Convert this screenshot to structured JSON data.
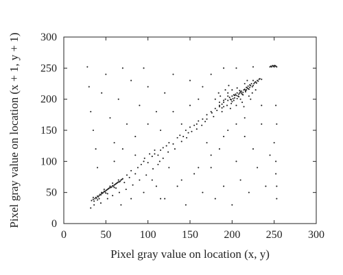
{
  "chart_data": {
    "type": "scatter",
    "xlabel": "Pixel gray value on location (x, y)",
    "ylabel": "Pixel gray value on location (x + 1, y + 1)",
    "xlim": [
      0,
      300
    ],
    "ylim": [
      0,
      300
    ],
    "xticks": [
      "0",
      "50",
      "100",
      "150",
      "200",
      "250",
      "300"
    ],
    "yticks": [
      "0",
      "50",
      "100",
      "150",
      "200",
      "250",
      "300"
    ],
    "grid": false,
    "marker_color": "#222222",
    "series": [
      {
        "points": [
          [
            33,
            37
          ],
          [
            35,
            39
          ],
          [
            37,
            40
          ],
          [
            38,
            42
          ],
          [
            40,
            44
          ],
          [
            42,
            45
          ],
          [
            43,
            47
          ],
          [
            45,
            48
          ],
          [
            47,
            50
          ],
          [
            48,
            52
          ],
          [
            50,
            53
          ],
          [
            52,
            55
          ],
          [
            53,
            56
          ],
          [
            55,
            58
          ],
          [
            57,
            59
          ],
          [
            58,
            61
          ],
          [
            60,
            62
          ],
          [
            62,
            64
          ],
          [
            63,
            65
          ],
          [
            65,
            67
          ],
          [
            67,
            68
          ],
          [
            68,
            70
          ],
          [
            36,
            36
          ],
          [
            39,
            41
          ],
          [
            41,
            43
          ],
          [
            44,
            46
          ],
          [
            46,
            49
          ],
          [
            49,
            51
          ],
          [
            51,
            54
          ],
          [
            54,
            57
          ],
          [
            56,
            58
          ],
          [
            59,
            60
          ],
          [
            61,
            63
          ],
          [
            64,
            66
          ],
          [
            66,
            67
          ],
          [
            69,
            71
          ],
          [
            40,
            38
          ],
          [
            45,
            50
          ],
          [
            50,
            49
          ],
          [
            55,
            60
          ],
          [
            60,
            58
          ],
          [
            65,
            70
          ],
          [
            35,
            42
          ],
          [
            42,
            40
          ],
          [
            48,
            55
          ],
          [
            52,
            48
          ],
          [
            58,
            65
          ],
          [
            62,
            57
          ],
          [
            70,
            72
          ],
          [
            72,
            66
          ],
          [
            75,
            78
          ],
          [
            78,
            74
          ],
          [
            80,
            85
          ],
          [
            85,
            80
          ],
          [
            88,
            90
          ],
          [
            92,
            95
          ],
          [
            95,
            100
          ],
          [
            100,
            98
          ],
          [
            105,
            108
          ],
          [
            108,
            112
          ],
          [
            112,
            110
          ],
          [
            115,
            118
          ],
          [
            118,
            122
          ],
          [
            122,
            125
          ],
          [
            125,
            130
          ],
          [
            130,
            128
          ],
          [
            135,
            138
          ],
          [
            138,
            142
          ],
          [
            142,
            140
          ],
          [
            145,
            150
          ],
          [
            148,
            146
          ],
          [
            150,
            155
          ],
          [
            155,
            158
          ],
          [
            158,
            152
          ],
          [
            160,
            165
          ],
          [
            165,
            168
          ],
          [
            168,
            164
          ],
          [
            170,
            175
          ],
          [
            175,
            180
          ],
          [
            178,
            172
          ],
          [
            180,
            185
          ],
          [
            185,
            190
          ],
          [
            188,
            186
          ],
          [
            190,
            195
          ],
          [
            192,
            200
          ],
          [
            195,
            198
          ],
          [
            197,
            203
          ],
          [
            200,
            205
          ],
          [
            202,
            198
          ],
          [
            204,
            208
          ],
          [
            206,
            210
          ],
          [
            208,
            204
          ],
          [
            210,
            212
          ],
          [
            212,
            208
          ],
          [
            214,
            215
          ],
          [
            216,
            212
          ],
          [
            218,
            218
          ],
          [
            220,
            216
          ],
          [
            222,
            222
          ],
          [
            224,
            220
          ],
          [
            226,
            225
          ],
          [
            228,
            228
          ],
          [
            230,
            230
          ],
          [
            232,
            232
          ],
          [
            198,
            200
          ],
          [
            200,
            196
          ],
          [
            203,
            202
          ],
          [
            205,
            206
          ],
          [
            207,
            205
          ],
          [
            209,
            210
          ],
          [
            211,
            213
          ],
          [
            213,
            211
          ],
          [
            215,
            216
          ],
          [
            217,
            219
          ],
          [
            219,
            217
          ],
          [
            221,
            223
          ],
          [
            223,
            225
          ],
          [
            225,
            222
          ],
          [
            185,
            195
          ],
          [
            190,
            188
          ],
          [
            195,
            210
          ],
          [
            200,
            215
          ],
          [
            205,
            190
          ],
          [
            210,
            200
          ],
          [
            215,
            225
          ],
          [
            220,
            205
          ],
          [
            186,
            205
          ],
          [
            192,
            215
          ],
          [
            198,
            185
          ],
          [
            212,
            195
          ],
          [
            218,
            230
          ],
          [
            224,
            210
          ],
          [
            180,
            200
          ],
          [
            184,
            210
          ],
          [
            188,
            180
          ],
          [
            196,
            222
          ],
          [
            206,
            218
          ],
          [
            214,
            188
          ],
          [
            222,
            200
          ],
          [
            228,
            215
          ],
          [
            245,
            252
          ],
          [
            246,
            253
          ],
          [
            247,
            252
          ],
          [
            248,
            254
          ],
          [
            249,
            253
          ],
          [
            250,
            252
          ],
          [
            251,
            254
          ],
          [
            252,
            253
          ],
          [
            253,
            252
          ],
          [
            250,
            254
          ],
          [
            28,
            252
          ],
          [
            30,
            220
          ],
          [
            32,
            180
          ],
          [
            35,
            150
          ],
          [
            38,
            120
          ],
          [
            40,
            90
          ],
          [
            45,
            210
          ],
          [
            50,
            240
          ],
          [
            55,
            170
          ],
          [
            60,
            130
          ],
          [
            65,
            200
          ],
          [
            70,
            250
          ],
          [
            75,
            160
          ],
          [
            80,
            230
          ],
          [
            85,
            110
          ],
          [
            90,
            190
          ],
          [
            95,
            250
          ],
          [
            100,
            220
          ],
          [
            105,
            70
          ],
          [
            110,
            180
          ],
          [
            115,
            40
          ],
          [
            120,
            210
          ],
          [
            125,
            90
          ],
          [
            130,
            240
          ],
          [
            135,
            60
          ],
          [
            140,
            160
          ],
          [
            145,
            30
          ],
          [
            150,
            230
          ],
          [
            155,
            80
          ],
          [
            160,
            200
          ],
          [
            165,
            50
          ],
          [
            170,
            130
          ],
          [
            175,
            90
          ],
          [
            180,
            40
          ],
          [
            185,
            120
          ],
          [
            190,
            60
          ],
          [
            195,
            150
          ],
          [
            200,
            30
          ],
          [
            205,
            100
          ],
          [
            210,
            70
          ],
          [
            215,
            140
          ],
          [
            220,
            50
          ],
          [
            225,
            120
          ],
          [
            230,
            90
          ],
          [
            235,
            160
          ],
          [
            240,
            60
          ],
          [
            245,
            110
          ],
          [
            250,
            130
          ],
          [
            252,
            80
          ],
          [
            253,
            40
          ],
          [
            252,
            190
          ],
          [
            253,
            160
          ],
          [
            252,
            100
          ],
          [
            253,
            60
          ],
          [
            68,
            30
          ],
          [
            80,
            40
          ],
          [
            95,
            50
          ],
          [
            110,
            60
          ],
          [
            120,
            40
          ],
          [
            140,
            70
          ],
          [
            160,
            90
          ],
          [
            175,
            110
          ],
          [
            190,
            140
          ],
          [
            205,
            160
          ],
          [
            215,
            170
          ],
          [
            235,
            190
          ],
          [
            60,
            100
          ],
          [
            70,
            120
          ],
          [
            85,
            140
          ],
          [
            100,
            160
          ],
          [
            115,
            150
          ],
          [
            130,
            180
          ],
          [
            150,
            190
          ],
          [
            165,
            220
          ],
          [
            175,
            240
          ],
          [
            190,
            250
          ],
          [
            205,
            250
          ],
          [
            225,
            252
          ],
          [
            32,
            25
          ],
          [
            36,
            30
          ],
          [
            44,
            33
          ],
          [
            52,
            40
          ],
          [
            58,
            45
          ],
          [
            66,
            50
          ],
          [
            74,
            55
          ],
          [
            82,
            62
          ],
          [
            90,
            70
          ],
          [
            98,
            78
          ],
          [
            106,
            88
          ],
          [
            114,
            100
          ],
          [
            102,
            112
          ],
          [
            108,
            118
          ],
          [
            112,
            95
          ],
          [
            118,
            105
          ],
          [
            96,
            105
          ],
          [
            124,
            115
          ],
          [
            132,
            120
          ],
          [
            140,
            132
          ],
          [
            146,
            138
          ],
          [
            152,
            148
          ],
          [
            158,
            160
          ],
          [
            164,
            158
          ],
          [
            170,
            168
          ],
          [
            176,
            178
          ],
          [
            182,
            182
          ],
          [
            188,
            192
          ],
          [
            194,
            190
          ],
          [
            199,
            199
          ],
          [
            201,
            201
          ],
          [
            203,
            206
          ],
          [
            208,
            208
          ],
          [
            211,
            210
          ],
          [
            216,
            214
          ],
          [
            219,
            221
          ],
          [
            227,
            227
          ],
          [
            229,
            226
          ],
          [
            231,
            229
          ],
          [
            233,
            233
          ],
          [
            235,
            232
          ],
          [
            199,
            193
          ],
          [
            202,
            207
          ],
          [
            206,
            201
          ],
          [
            209,
            214
          ],
          [
            213,
            207
          ],
          [
            217,
            215
          ],
          [
            221,
            219
          ],
          [
            225,
            230
          ],
          [
            195,
            205
          ],
          [
            190,
            198
          ],
          [
            185,
            188
          ]
        ]
      }
    ]
  }
}
